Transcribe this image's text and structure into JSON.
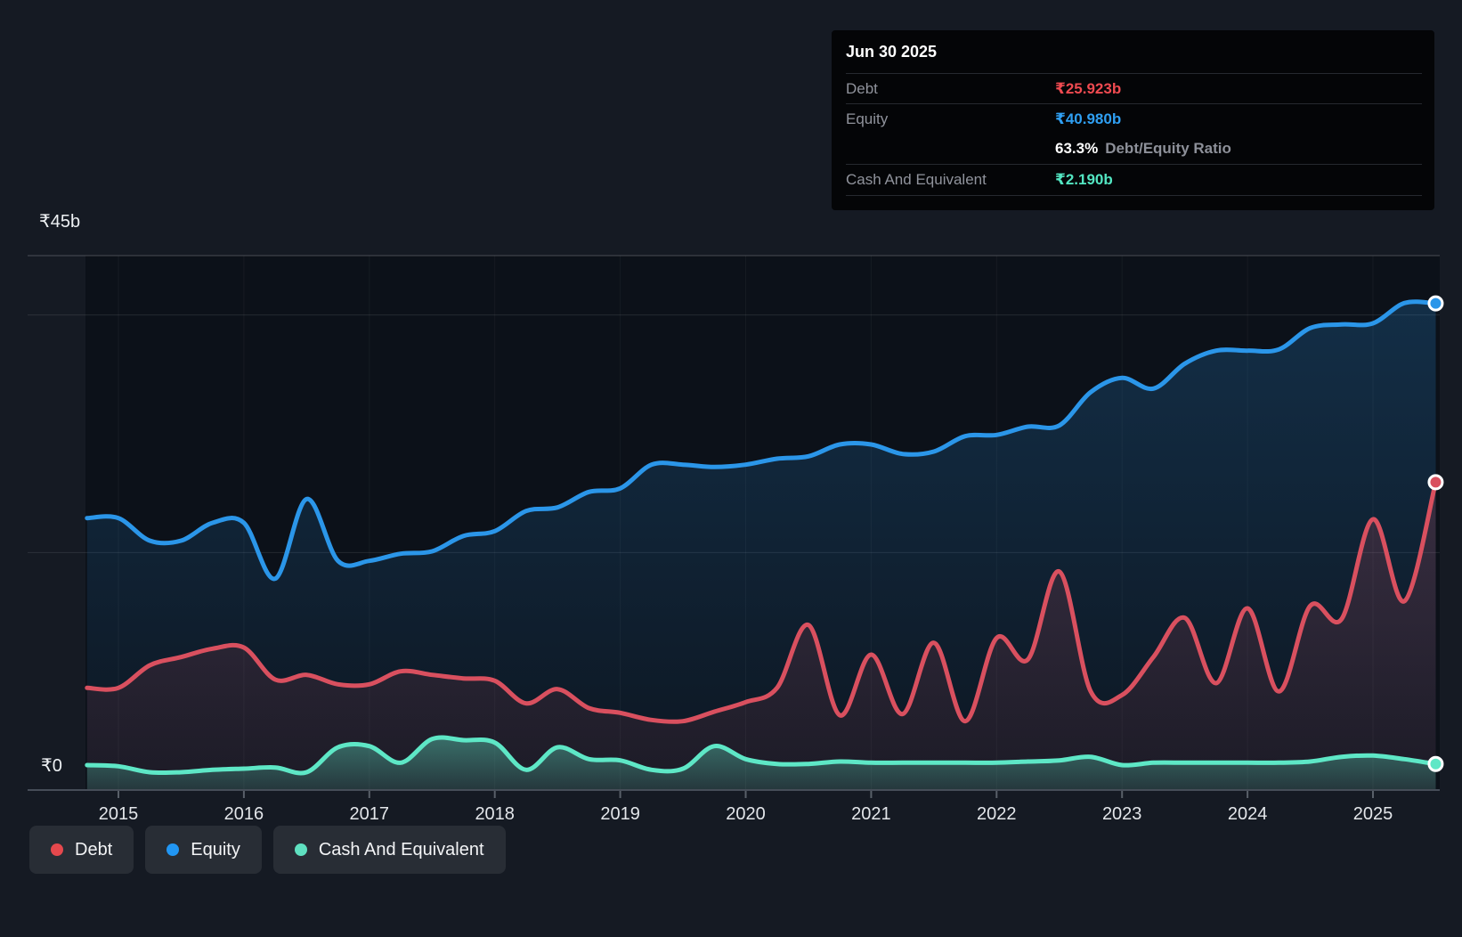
{
  "tooltip": {
    "title": "Jun 30 2025",
    "debt_label": "Debt",
    "debt_value": "₹25.923b",
    "equity_label": "Equity",
    "equity_value": "₹40.980b",
    "ratio_value": "63.3%",
    "ratio_label": "Debt/Equity Ratio",
    "cash_label": "Cash And Equivalent",
    "cash_value": "₹2.190b"
  },
  "axis": {
    "y_top_label": "₹45b",
    "y_zero_label": "₹0"
  },
  "accents": {
    "debt": "#ef4a50",
    "equity": "#2f9ff2",
    "cash": "#53e6c2"
  },
  "legend": {
    "items": [
      {
        "label": "Debt",
        "color": "#e5484d"
      },
      {
        "label": "Equity",
        "color": "#2196f3"
      },
      {
        "label": "Cash And Equivalent",
        "color": "#5fe0c0"
      }
    ]
  },
  "chart_data": {
    "type": "area",
    "title": "Debt, Equity and Cash history (₹ billions)",
    "currency": "₹",
    "unit": "b",
    "ylim": [
      0,
      45
    ],
    "y_gridlines": [
      0,
      20,
      40
    ],
    "y_top_line": 45,
    "x_ticks": [
      2015,
      2016,
      2017,
      2018,
      2019,
      2020,
      2021,
      2022,
      2023,
      2024,
      2025
    ],
    "legend_position": "bottom-left",
    "grid": true,
    "x": [
      2014.75,
      2015.0,
      2015.25,
      2015.5,
      2015.75,
      2016.0,
      2016.25,
      2016.5,
      2016.75,
      2017.0,
      2017.25,
      2017.5,
      2017.75,
      2018.0,
      2018.25,
      2018.5,
      2018.75,
      2019.0,
      2019.25,
      2019.5,
      2019.75,
      2020.0,
      2020.25,
      2020.5,
      2020.75,
      2021.0,
      2021.25,
      2021.5,
      2021.75,
      2022.0,
      2022.25,
      2022.5,
      2022.75,
      2023.0,
      2023.25,
      2023.5,
      2023.75,
      2024.0,
      2024.25,
      2024.5,
      2024.75,
      2025.0,
      2025.25,
      2025.5
    ],
    "series": [
      {
        "name": "Equity",
        "color": "#2b96e9",
        "last_label": "₹40.980b",
        "values": [
          22.9,
          22.9,
          21.0,
          21.0,
          22.5,
          22.5,
          17.8,
          24.5,
          19.3,
          19.3,
          19.9,
          20.1,
          21.4,
          21.8,
          23.5,
          23.8,
          25.1,
          25.4,
          27.4,
          27.4,
          27.2,
          27.4,
          27.9,
          28.1,
          29.1,
          29.1,
          28.3,
          28.5,
          29.8,
          29.9,
          30.6,
          30.7,
          33.5,
          34.7,
          33.8,
          35.9,
          37.0,
          37.0,
          37.1,
          38.9,
          39.2,
          39.3,
          41.0,
          40.98
        ]
      },
      {
        "name": "Debt",
        "color": "#d9505f",
        "last_label": "₹25.923b",
        "values": [
          8.6,
          8.6,
          10.5,
          11.2,
          11.9,
          12.0,
          9.3,
          9.7,
          8.9,
          8.9,
          10.0,
          9.7,
          9.4,
          9.2,
          7.3,
          8.5,
          6.9,
          6.5,
          5.9,
          5.8,
          6.6,
          7.4,
          8.6,
          13.9,
          6.3,
          11.4,
          6.4,
          12.4,
          5.8,
          12.8,
          11.0,
          18.4,
          8.3,
          8.0,
          11.2,
          14.5,
          9.0,
          15.3,
          8.3,
          15.5,
          14.4,
          22.8,
          15.9,
          25.923
        ]
      },
      {
        "name": "Cash And Equivalent",
        "color": "#5ee7c6",
        "last_label": "₹2.190b",
        "values": [
          2.1,
          2.0,
          1.5,
          1.5,
          1.7,
          1.8,
          1.9,
          1.5,
          3.6,
          3.7,
          2.3,
          4.3,
          4.2,
          4.0,
          1.7,
          3.6,
          2.6,
          2.5,
          1.7,
          1.8,
          3.7,
          2.6,
          2.2,
          2.2,
          2.4,
          2.3,
          2.3,
          2.3,
          2.3,
          2.3,
          2.4,
          2.5,
          2.8,
          2.1,
          2.3,
          2.3,
          2.3,
          2.3,
          2.3,
          2.4,
          2.8,
          2.9,
          2.6,
          2.19
        ]
      }
    ]
  }
}
